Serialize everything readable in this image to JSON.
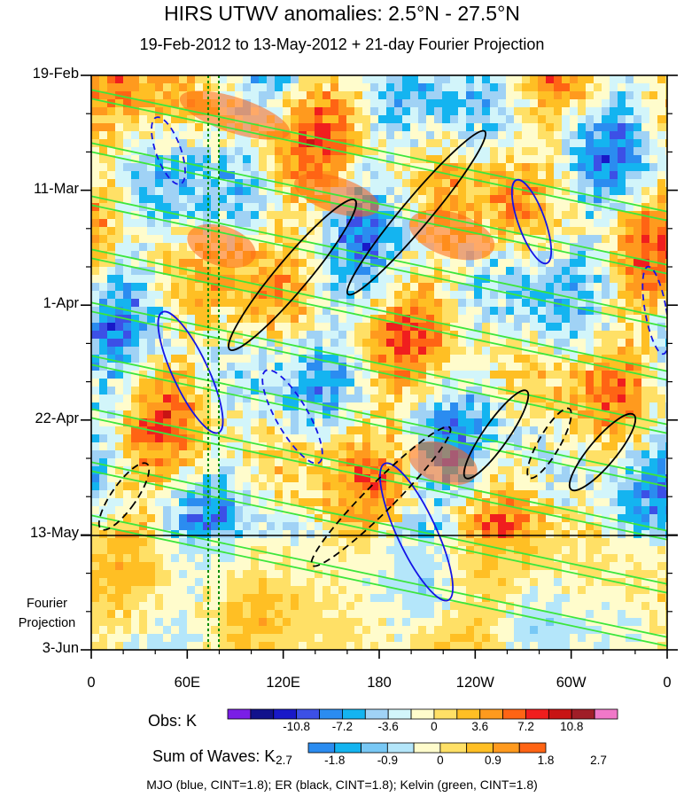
{
  "chart_data": {
    "type": "heatmap",
    "title": "HIRS UTWV anomalies: 2.5°N - 27.5°N",
    "subtitle": "19-Feb-2012 to 13-May-2012 + 21-day Fourier Projection",
    "x_ticks": [
      "0",
      "60E",
      "120E",
      "180",
      "120W",
      "60W",
      "0"
    ],
    "y_ticks": [
      "19-Feb",
      "11-Mar",
      "1-Apr",
      "22-Apr",
      "13-May",
      "3-Jun"
    ],
    "projection_label": [
      "Fourier",
      "Projection"
    ],
    "obs_colorbar": {
      "label": "Obs: K",
      "tick_labels": [
        "-10.8",
        "-7.2",
        "-3.6",
        "0",
        "3.6",
        "7.2",
        "10.8"
      ],
      "colors": [
        "#7a1ee6",
        "#12128c",
        "#1919c8",
        "#3c50e6",
        "#2b8cf0",
        "#14b4f0",
        "#a0d2f5",
        "#d2f5fa",
        "#fffccc",
        "#ffe066",
        "#ffbf24",
        "#ff9a1e",
        "#ff6414",
        "#f01e1e",
        "#c81414",
        "#a01e28",
        "#f078c8"
      ]
    },
    "wave_colorbar": {
      "label": "Sum of Waves: K",
      "tick_labels": [
        "-2.7",
        "-1.8",
        "-0.9",
        "0",
        "0.9",
        "1.8",
        "2.7"
      ],
      "colors": [
        "#2b8cf0",
        "#14b4f0",
        "#78c8f5",
        "#b4e6fa",
        "#fffccc",
        "#ffe066",
        "#ffbf24",
        "#ff9a1e",
        "#ff6414"
      ]
    },
    "contours": "MJO (blue, CINT=1.8); ER (black, CINT=1.8); Kelvin (green, CINT=1.8)",
    "series_colors": {
      "mjo": "#1414e6",
      "er": "#000000",
      "kelvin": "#3ce63c",
      "marker": "#008c00"
    }
  }
}
